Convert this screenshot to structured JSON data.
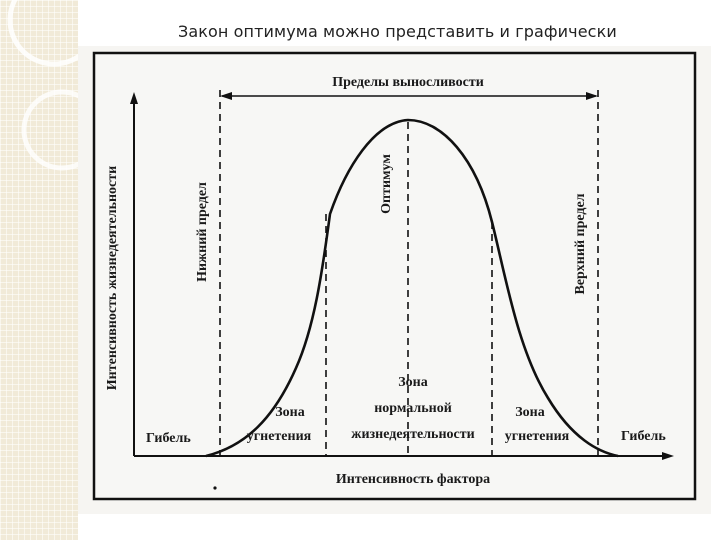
{
  "slide": {
    "title": "Закон оптимума можно представить и графически"
  },
  "diagram": {
    "top_label": "Пределы выносливости",
    "y_axis_label": "Интенсивность жизнедеятельности",
    "x_axis_label": "Интенсивность фактора",
    "lower_limit_label": "Нижний предел",
    "upper_limit_label": "Верхний предел",
    "optimum_label": "Оптимум",
    "death_left": "Гибель",
    "death_right": "Гибель",
    "zone_left": [
      "Зона",
      "угнетения"
    ],
    "zone_center": [
      "Зона",
      "нормальной",
      "жизнедеятельности"
    ],
    "zone_right": [
      "Зона",
      "угнетения"
    ]
  }
}
